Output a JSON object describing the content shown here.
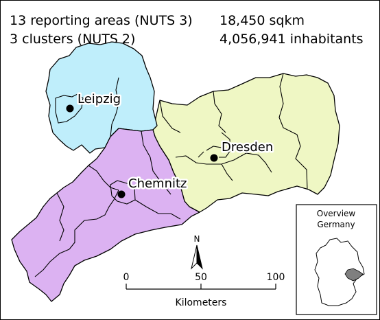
{
  "summary": {
    "areas": "13 reporting areas (NUTS 3)",
    "clusters": "3 clusters (NUTS 2)",
    "area_size": "18,450 sqkm",
    "inhabitants": "4,056,941 inhabitants"
  },
  "clusters": [
    {
      "name": "Leipzig",
      "color": "#bfeefb"
    },
    {
      "name": "Dresden",
      "color": "#eff7c4"
    },
    {
      "name": "Chemnitz",
      "color": "#dcb2f2"
    }
  ],
  "north_arrow": {
    "label": "N",
    "icon": "north-arrow-icon"
  },
  "scale_bar": {
    "ticks": [
      "0",
      "50",
      "100"
    ],
    "unit": "Kilometers"
  },
  "overview": {
    "title_line1": "Overview",
    "title_line2": "Germany",
    "highlight_color": "#7f7f7f"
  }
}
